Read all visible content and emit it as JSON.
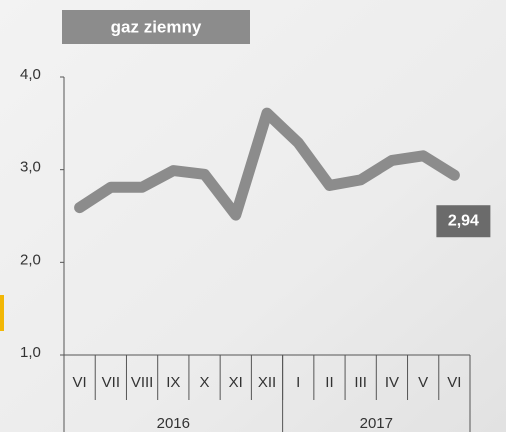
{
  "chart_data": {
    "type": "line",
    "title": "gaz ziemny",
    "categories": [
      "VI",
      "VII",
      "VIII",
      "IX",
      "X",
      "XI",
      "XII",
      "I",
      "II",
      "III",
      "IV",
      "V",
      "VI"
    ],
    "groups": [
      {
        "label": "2016",
        "count": 7
      },
      {
        "label": "2017",
        "count": 6
      }
    ],
    "values": [
      2.59,
      2.81,
      2.81,
      2.99,
      2.95,
      2.51,
      3.61,
      3.29,
      2.83,
      2.89,
      3.1,
      3.15,
      2.94
    ],
    "value_labels": [
      null,
      null,
      null,
      null,
      null,
      null,
      null,
      null,
      null,
      null,
      null,
      null,
      "2,94"
    ],
    "color": "#8c8c8c",
    "ylim": [
      1,
      4
    ],
    "yticks": [
      {
        "value": 1,
        "label": "1,0"
      },
      {
        "value": 2,
        "label": "2,0"
      },
      {
        "value": 3,
        "label": "3,0"
      },
      {
        "value": 4,
        "label": "4,0"
      }
    ]
  }
}
